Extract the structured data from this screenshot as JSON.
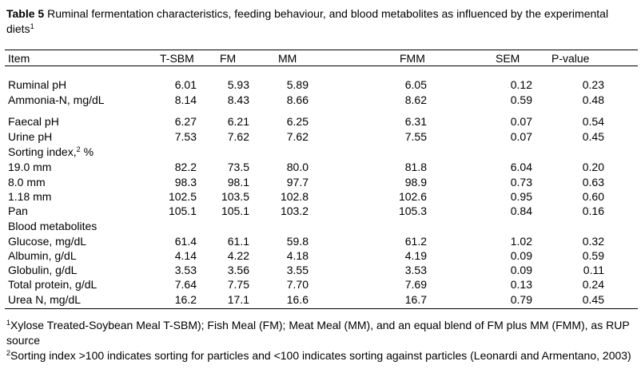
{
  "title": {
    "label": "Table 5",
    "text": "Ruminal fermentation characteristics, feeding behaviour, and blood metabolites as influenced by the experimental diets",
    "sup": "1"
  },
  "table": {
    "header": [
      "Item",
      "T-SBM",
      "FM",
      "MM",
      "FMM",
      "SEM",
      "P-value"
    ],
    "rows": [
      {
        "label": "Ruminal pH",
        "values": [
          "6.01",
          "5.93",
          "5.89",
          "6.05",
          "0.12",
          "0.23"
        ]
      },
      {
        "label": "Ammonia-N, mg/dL",
        "values": [
          "8.14",
          "8.43",
          "8.66",
          "8.62",
          "0.59",
          "0.48"
        ]
      },
      {
        "label": "Faecal pH",
        "values": [
          "6.27",
          "6.21",
          "6.25",
          "6.31",
          "0.07",
          "0.54"
        ]
      },
      {
        "label": "Urine pH",
        "values": [
          "7.53",
          "7.62",
          "7.62",
          "7.55",
          "0.07",
          "0.45"
        ]
      },
      {
        "label": "Sorting index,",
        "label_sup": "2",
        "label_suffix": "%"
      },
      {
        "label": "19.0 mm",
        "values": [
          "82.2",
          "73.5",
          "80.0",
          "81.8",
          "6.04",
          "0.20"
        ]
      },
      {
        "label": "8.0 mm",
        "values": [
          "98.3",
          "98.1",
          "97.7",
          "98.9",
          "0.73",
          "0.63"
        ]
      },
      {
        "label": "1.18 mm",
        "values": [
          "102.5",
          "103.5",
          "102.8",
          "102.6",
          "0.95",
          "0.60"
        ]
      },
      {
        "label": "Pan",
        "values": [
          "105.1",
          "105.1",
          "103.2",
          "105.3",
          "0.84",
          "0.16"
        ]
      },
      {
        "label": "Blood metabolites"
      },
      {
        "label": "Glucose, mg/dL",
        "values": [
          "61.4",
          "61.1",
          "59.8",
          "61.2",
          "1.02",
          "0.32"
        ]
      },
      {
        "label": "Albumin, g/dL",
        "values": [
          "4.14",
          "4.22",
          "4.18",
          "4.19",
          "0.09",
          "0.59"
        ]
      },
      {
        "label": "Globulin, g/dL",
        "values": [
          "3.53",
          "3.56",
          "3.55",
          "3.53",
          "0.09",
          "0.11"
        ]
      },
      {
        "label": "Total protein, g/dL",
        "values": [
          "7.64",
          "7.75",
          "7.70",
          "7.69",
          "0.13",
          "0.24"
        ]
      },
      {
        "label": "Urea N, mg/dL",
        "values": [
          "16.2",
          "17.1",
          "16.6",
          "16.7",
          "0.79",
          "0.45"
        ]
      }
    ]
  },
  "footnotes": [
    {
      "mark": "1",
      "text": "Xylose Treated-Soybean Meal T-SBM); Fish Meal (FM); Meat Meal (MM), and an equal blend of FM plus MM (FMM), as RUP source"
    },
    {
      "mark": "2",
      "text": "Sorting index >100 indicates sorting for particles and <100 indicates sorting against particles (Leonardi and Armentano, 2003)"
    }
  ]
}
